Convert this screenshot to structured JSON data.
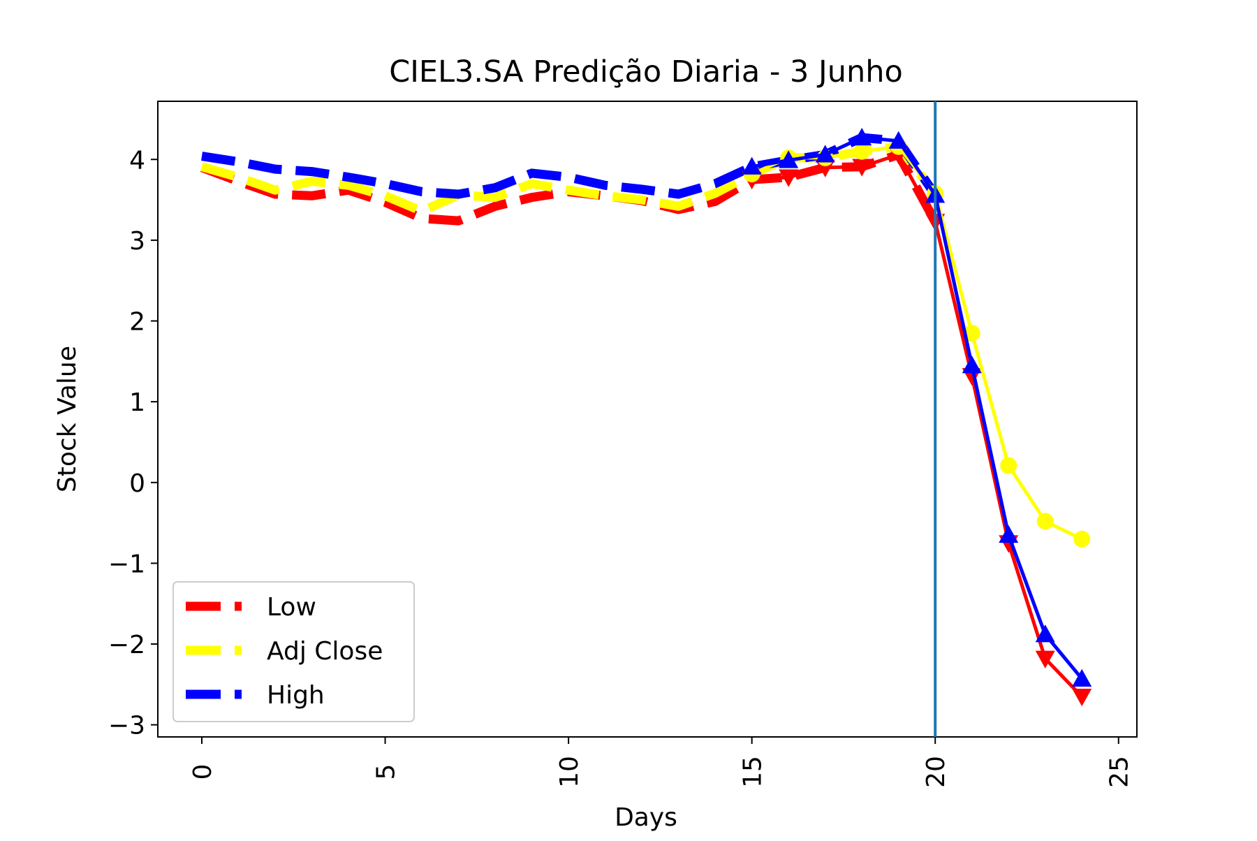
{
  "chart_data": {
    "type": "line",
    "title": "CIEL3.SA Predição Diaria - 3 Junho",
    "xlabel": "Days",
    "ylabel": "Stock Value",
    "xlim": [
      -1.2,
      25.5
    ],
    "ylim": [
      -3.15,
      4.72
    ],
    "xticks": [
      0,
      5,
      10,
      15,
      20,
      25
    ],
    "yticks": [
      4,
      3,
      2,
      1,
      0,
      -1,
      -2,
      -3
    ],
    "ytick_labels": [
      "4",
      "3",
      "2",
      "1",
      "0",
      "−1",
      "−2",
      "−3"
    ],
    "vline": {
      "x": 20,
      "color": "#1f77b4"
    },
    "legend_position": "lower-left",
    "series": [
      {
        "name": "Low",
        "color": "#ff0000",
        "marker": "triangle-down",
        "history_x": [
          0,
          1,
          2,
          3,
          4,
          5,
          6,
          7,
          8,
          9,
          10,
          11,
          12,
          13,
          14,
          15,
          16,
          17,
          18,
          19,
          20
        ],
        "history_y": [
          3.9,
          3.73,
          3.57,
          3.55,
          3.62,
          3.47,
          3.27,
          3.24,
          3.42,
          3.53,
          3.6,
          3.55,
          3.49,
          3.38,
          3.48,
          3.75,
          3.78,
          3.9,
          3.91,
          4.06,
          3.23
        ],
        "forecast_x": [
          15,
          16,
          17,
          18,
          19,
          20,
          21,
          22,
          23,
          24
        ],
        "forecast_y": [
          3.75,
          3.78,
          3.9,
          3.91,
          4.06,
          3.23,
          1.32,
          -0.75,
          -2.18,
          -2.65
        ]
      },
      {
        "name": "Adj Close",
        "color": "#ffff00",
        "marker": "circle",
        "history_x": [
          0,
          1,
          2,
          3,
          4,
          5,
          6,
          7,
          8,
          9,
          10,
          11,
          12,
          13,
          14,
          15,
          16,
          17,
          18,
          19,
          20
        ],
        "history_y": [
          3.91,
          3.78,
          3.62,
          3.73,
          3.68,
          3.55,
          3.36,
          3.56,
          3.53,
          3.7,
          3.62,
          3.55,
          3.5,
          3.42,
          3.58,
          3.82,
          4.02,
          4.02,
          4.1,
          4.16,
          3.58
        ],
        "forecast_x": [
          15,
          16,
          17,
          18,
          19,
          20,
          21,
          22,
          23,
          24
        ],
        "forecast_y": [
          3.82,
          4.02,
          4.02,
          4.1,
          4.16,
          3.58,
          1.85,
          0.21,
          -0.48,
          -0.7
        ]
      },
      {
        "name": "High",
        "color": "#0000ff",
        "marker": "triangle-up",
        "history_x": [
          0,
          1,
          2,
          3,
          4,
          5,
          6,
          7,
          8,
          9,
          10,
          11,
          12,
          13,
          14,
          15,
          16,
          17,
          18,
          19,
          20
        ],
        "history_y": [
          4.04,
          3.97,
          3.88,
          3.85,
          3.78,
          3.7,
          3.6,
          3.57,
          3.65,
          3.83,
          3.78,
          3.68,
          3.63,
          3.57,
          3.7,
          3.91,
          3.99,
          4.06,
          4.27,
          4.23,
          3.56
        ],
        "forecast_x": [
          15,
          16,
          17,
          18,
          19,
          20,
          21,
          22,
          23,
          24
        ],
        "forecast_y": [
          3.91,
          3.99,
          4.06,
          4.27,
          4.23,
          3.56,
          1.45,
          -0.65,
          -1.88,
          -2.43
        ]
      }
    ]
  }
}
